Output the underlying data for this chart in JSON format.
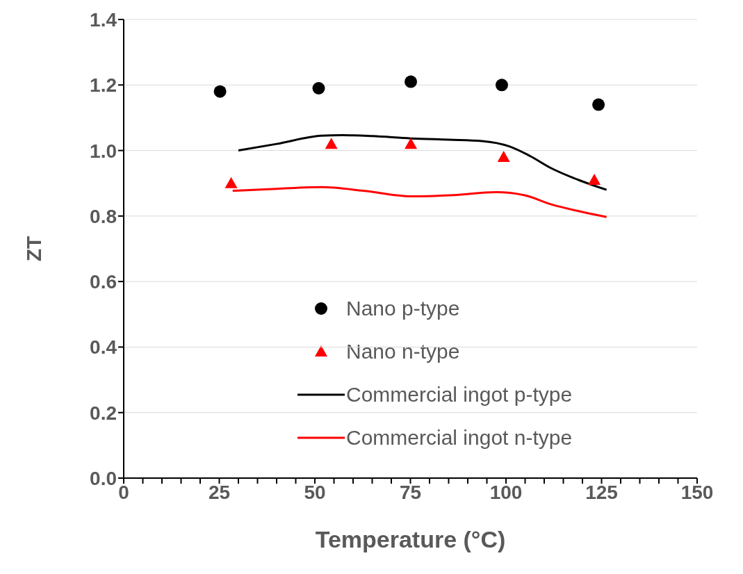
{
  "chart_data": {
    "type": "scatter",
    "xlabel": "Temperature (°C)",
    "ylabel": "ZT",
    "xlim": [
      0,
      150
    ],
    "ylim": [
      0,
      1.4
    ],
    "xticks": [
      0,
      {
        "value": 5,
        "label": null
      },
      {
        "value": 10,
        "label": null
      },
      {
        "value": 15,
        "label": null
      },
      {
        "value": 20,
        "label": null
      },
      25,
      {
        "value": 30,
        "label": null
      },
      {
        "value": 35,
        "label": null
      },
      {
        "value": 40,
        "label": null
      },
      {
        "value": 45,
        "label": null
      },
      50,
      {
        "value": 55,
        "label": null
      },
      {
        "value": 60,
        "label": null
      },
      {
        "value": 65,
        "label": null
      },
      {
        "value": 70,
        "label": null
      },
      75,
      {
        "value": 80,
        "label": null
      },
      {
        "value": 85,
        "label": null
      },
      {
        "value": 90,
        "label": null
      },
      {
        "value": 95,
        "label": null
      },
      100,
      {
        "value": 105,
        "label": null
      },
      {
        "value": 110,
        "label": null
      },
      {
        "value": 115,
        "label": null
      },
      {
        "value": 120,
        "label": null
      },
      125,
      {
        "value": 130,
        "label": null
      },
      {
        "value": 135,
        "label": null
      },
      {
        "value": 140,
        "label": null
      },
      {
        "value": 145,
        "label": null
      },
      150
    ],
    "yticks": [
      {
        "value": 0,
        "label": "0.0"
      },
      0.2,
      0.4,
      0.6,
      0.8,
      {
        "value": 1,
        "label": "1.0"
      },
      1.2,
      1.4
    ],
    "grid": "y",
    "legend": "center",
    "series": [
      {
        "name": "Nano p-type",
        "type": "scatter",
        "marker": "circle",
        "color": "#000000",
        "x": [
          25.2,
          51,
          75.1,
          98.9,
          124.2
        ],
        "values": [
          1.18,
          1.19,
          1.21,
          1.2,
          1.14
        ]
      },
      {
        "name": "Nano n-type",
        "type": "scatter",
        "marker": "triangle",
        "color": "#ff0000",
        "x": [
          28.1,
          54.3,
          75.1,
          99.4,
          123.1
        ],
        "values": [
          0.9,
          1.02,
          1.02,
          0.98,
          0.91
        ]
      },
      {
        "name": "Commercial ingot p-type",
        "type": "line",
        "marker": "none",
        "color": "#000000",
        "x": [
          30,
          40,
          51.7,
          57.2,
          65,
          75.1,
          85,
          93.7,
          101,
          106,
          112,
          119,
          126.3
        ],
        "values": [
          1.0,
          1.02,
          1.045,
          1.047,
          1.044,
          1.037,
          1.033,
          1.029,
          1.012,
          0.985,
          0.945,
          0.91,
          0.88
        ]
      },
      {
        "name": "Commercial ingot n-type",
        "type": "line",
        "marker": "none",
        "color": "#ff0000",
        "x": [
          28.5,
          40,
          51.7,
          62.7,
          75.1,
          86.4,
          97.4,
          104.7,
          112,
          119,
          126.3
        ],
        "values": [
          0.877,
          0.883,
          0.888,
          0.877,
          0.86,
          0.864,
          0.873,
          0.864,
          0.835,
          0.815,
          0.797
        ]
      }
    ]
  }
}
